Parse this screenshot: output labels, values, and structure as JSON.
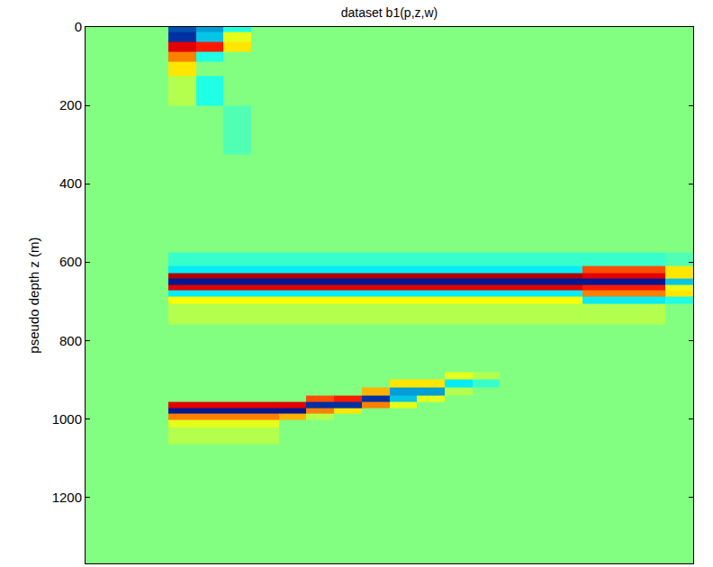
{
  "chart_data": {
    "type": "heatmap",
    "title": "dataset b1(p,z,w)",
    "ylabel": "pseudo depth z (m)",
    "tick_labels": "y",
    "grid": false,
    "ylim": [
      0,
      1369
    ],
    "yticks": [
      0,
      200,
      400,
      600,
      800,
      1000,
      1200
    ],
    "zlim": [
      -1,
      1
    ],
    "y": [
      0,
      25,
      50,
      75,
      100,
      150,
      250,
      400,
      550,
      600,
      620,
      635,
      650,
      665,
      680,
      695,
      720,
      800,
      870,
      890,
      910,
      930,
      950,
      965,
      980,
      995,
      1010,
      1030,
      1100,
      1250,
      1369
    ],
    "z": [
      [
        0,
        0,
        0,
        -0.7,
        -0.5,
        -0.2,
        0,
        0,
        0,
        0,
        0,
        0,
        0,
        0,
        0,
        0,
        0,
        0,
        0,
        0,
        0,
        0
      ],
      [
        0,
        0,
        0,
        -0.8,
        -0.4,
        0.2,
        0,
        0,
        0,
        0,
        0,
        0,
        0,
        0,
        0,
        0,
        0,
        0,
        0,
        0,
        0,
        0
      ],
      [
        0,
        0,
        0,
        0.8,
        0.7,
        0.3,
        0,
        0,
        0,
        0,
        0,
        0,
        0,
        0,
        0,
        0,
        0,
        0,
        0,
        0,
        0,
        0
      ],
      [
        0,
        0,
        0,
        0.5,
        -0.2,
        0,
        0,
        0,
        0,
        0,
        0,
        0,
        0,
        0,
        0,
        0,
        0,
        0,
        0,
        0,
        0,
        0
      ],
      [
        0,
        0,
        0,
        0.3,
        0,
        0,
        0,
        0,
        0,
        0,
        0,
        0,
        0,
        0,
        0,
        0,
        0,
        0,
        0,
        0,
        0,
        0
      ],
      [
        0,
        0,
        0,
        0.1,
        -0.2,
        0,
        0,
        0,
        0,
        0,
        0,
        0,
        0,
        0,
        0,
        0,
        0,
        0,
        0,
        0,
        0,
        0
      ],
      [
        0,
        0,
        0,
        0,
        0,
        -0.1,
        0,
        0,
        0,
        0,
        0,
        0,
        0,
        0,
        0,
        0,
        0,
        0,
        0,
        0,
        0,
        0
      ],
      [
        0,
        0,
        0,
        0,
        0,
        0,
        0,
        0,
        0,
        0,
        0,
        0,
        0,
        0,
        0,
        0,
        0,
        0,
        0,
        0,
        0,
        0
      ],
      [
        0,
        0,
        0,
        0,
        0,
        0,
        0,
        0,
        0,
        0,
        0,
        0,
        0,
        0,
        0,
        0,
        0,
        0,
        0,
        0,
        0,
        0
      ],
      [
        0,
        0,
        0,
        -0.15,
        -0.15,
        -0.15,
        -0.15,
        -0.15,
        -0.15,
        -0.15,
        -0.15,
        -0.15,
        -0.15,
        -0.15,
        -0.15,
        -0.15,
        -0.15,
        -0.15,
        -0.15,
        -0.15,
        -0.15,
        -0.1
      ],
      [
        0,
        0,
        0,
        -0.3,
        -0.3,
        -0.3,
        -0.3,
        -0.3,
        -0.3,
        -0.3,
        -0.3,
        -0.3,
        -0.3,
        -0.3,
        -0.3,
        -0.3,
        -0.3,
        -0.3,
        0.6,
        0.6,
        0.6,
        0.3
      ],
      [
        0,
        0,
        0,
        0.9,
        0.9,
        0.9,
        0.9,
        0.9,
        0.9,
        0.9,
        0.9,
        0.9,
        0.9,
        0.9,
        0.9,
        0.9,
        0.9,
        0.9,
        0.8,
        0.8,
        0.8,
        0.3
      ],
      [
        0,
        0,
        0,
        -0.9,
        -0.9,
        -0.9,
        -0.9,
        -0.9,
        -0.9,
        -0.9,
        -0.9,
        -0.9,
        -0.9,
        -0.9,
        -0.9,
        -0.9,
        -0.9,
        -0.9,
        -0.9,
        -0.9,
        -0.9,
        -0.4
      ],
      [
        0,
        0,
        0,
        0.8,
        0.8,
        0.8,
        0.8,
        0.8,
        0.8,
        0.8,
        0.8,
        0.8,
        0.8,
        0.8,
        0.8,
        0.8,
        0.8,
        0.8,
        0.7,
        0.7,
        0.7,
        0.2
      ],
      [
        0,
        0,
        0,
        -0.3,
        -0.3,
        -0.3,
        -0.3,
        -0.3,
        -0.3,
        -0.3,
        -0.3,
        -0.3,
        -0.3,
        -0.3,
        -0.3,
        -0.3,
        -0.3,
        -0.3,
        0.5,
        0.5,
        0.5,
        0.3
      ],
      [
        0,
        0,
        0,
        0.25,
        0.25,
        0.25,
        0.25,
        0.25,
        0.25,
        0.25,
        0.25,
        0.25,
        0.25,
        0.25,
        0.25,
        0.25,
        0.25,
        0.25,
        -0.3,
        -0.3,
        -0.3,
        -0.2
      ],
      [
        0,
        0,
        0,
        0.1,
        0.1,
        0.1,
        0.1,
        0.1,
        0.1,
        0.1,
        0.1,
        0.1,
        0.1,
        0.1,
        0.1,
        0.1,
        0.1,
        0.1,
        0.1,
        0.1,
        0.1,
        0
      ],
      [
        0,
        0,
        0,
        0,
        0,
        0,
        0,
        0,
        0,
        0,
        0,
        0,
        0,
        0,
        0,
        0,
        0,
        0,
        0,
        0,
        0,
        0
      ],
      [
        0,
        0,
        0,
        0,
        0,
        0,
        0,
        0,
        0,
        0,
        0,
        0,
        0,
        0,
        0,
        0,
        0,
        0,
        0,
        0,
        0,
        0
      ],
      [
        0,
        0,
        0,
        0,
        0,
        0,
        0,
        0,
        0,
        0,
        0,
        0,
        0,
        0.2,
        0.1,
        0,
        0,
        0,
        0,
        0,
        0,
        0
      ],
      [
        0,
        0,
        0,
        0,
        0,
        0,
        0,
        0,
        0,
        0,
        0,
        0.3,
        0.3,
        -0.3,
        -0.15,
        0,
        0,
        0,
        0,
        0,
        0,
        0
      ],
      [
        0,
        0,
        0,
        0,
        0,
        0,
        0,
        0,
        0,
        0,
        0.4,
        -0.5,
        -0.5,
        0.1,
        0,
        0,
        0,
        0,
        0,
        0,
        0,
        0
      ],
      [
        0,
        0,
        0,
        0,
        0,
        0,
        0,
        0,
        0.6,
        0.7,
        -0.8,
        -0.4,
        0.2,
        0,
        0,
        0,
        0,
        0,
        0,
        0,
        0,
        0
      ],
      [
        0,
        0,
        0,
        0.8,
        0.8,
        0.8,
        0.8,
        0.8,
        -0.8,
        -0.8,
        0.5,
        0.2,
        0,
        0,
        0,
        0,
        0,
        0,
        0,
        0,
        0,
        0
      ],
      [
        0,
        0,
        0,
        -0.9,
        -0.9,
        -0.9,
        -0.9,
        -0.9,
        0.5,
        0.3,
        0,
        0,
        0,
        0,
        0,
        0,
        0,
        0,
        0,
        0,
        0,
        0
      ],
      [
        0,
        0,
        0,
        0.5,
        0.5,
        0.5,
        0.5,
        0.4,
        0.1,
        0,
        0,
        0,
        0,
        0,
        0,
        0,
        0,
        0,
        0,
        0,
        0,
        0
      ],
      [
        0,
        0,
        0,
        0.2,
        0.2,
        0.2,
        0.2,
        0,
        0,
        0,
        0,
        0,
        0,
        0,
        0,
        0,
        0,
        0,
        0,
        0,
        0,
        0
      ],
      [
        0,
        0,
        0,
        0.1,
        0.1,
        0.1,
        0.1,
        0,
        0,
        0,
        0,
        0,
        0,
        0,
        0,
        0,
        0,
        0,
        0,
        0,
        0,
        0
      ],
      [
        0,
        0,
        0,
        0,
        0,
        0,
        0,
        0,
        0,
        0,
        0,
        0,
        0,
        0,
        0,
        0,
        0,
        0,
        0,
        0,
        0,
        0
      ],
      [
        0,
        0,
        0,
        0,
        0,
        0,
        0,
        0,
        0,
        0,
        0,
        0,
        0,
        0,
        0,
        0,
        0,
        0,
        0,
        0,
        0,
        0
      ],
      [
        0,
        0,
        0,
        0,
        0,
        0,
        0,
        0,
        0,
        0,
        0,
        0,
        0,
        0,
        0,
        0,
        0,
        0,
        0,
        0,
        0,
        0
      ]
    ]
  }
}
